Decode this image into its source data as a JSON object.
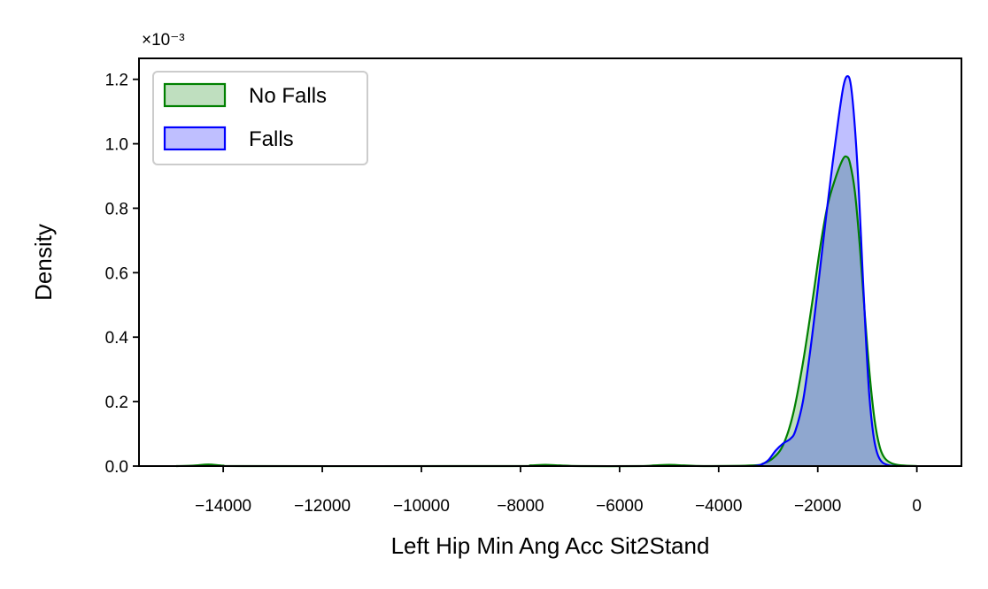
{
  "chart_data": {
    "type": "area",
    "xlabel": "Left Hip Min Ang Acc Sit2Stand",
    "ylabel": "Density",
    "y_scale_label": "×10⁻³",
    "y_scale_factor": 0.001,
    "xlim": [
      -15700,
      900
    ],
    "ylim": [
      0,
      1.265
    ],
    "x_ticks": [
      -14000,
      -12000,
      -10000,
      -8000,
      -6000,
      -4000,
      -2000,
      0
    ],
    "x_tick_labels": [
      "−14000",
      "−12000",
      "−10000",
      "−8000",
      "−6000",
      "−4000",
      "−2000",
      "0"
    ],
    "y_ticks": [
      0.0,
      0.2,
      0.4,
      0.6,
      0.8,
      1.0,
      1.2
    ],
    "y_tick_labels": [
      "0.0",
      "0.2",
      "0.4",
      "0.6",
      "0.8",
      "1.0",
      "1.2"
    ],
    "grid": false,
    "legend_position": "top-left",
    "series": [
      {
        "name": "No Falls",
        "line_color": "#008000",
        "fill_color": "#008000",
        "points": [
          [
            -14950,
            0.0
          ],
          [
            -14600,
            0.0015
          ],
          [
            -14300,
            0.005
          ],
          [
            -14000,
            0.0015
          ],
          [
            -13600,
            0.0
          ],
          [
            -8200,
            0.0
          ],
          [
            -7800,
            0.002
          ],
          [
            -7500,
            0.004
          ],
          [
            -7200,
            0.002
          ],
          [
            -6800,
            0.0
          ],
          [
            -5600,
            0.0
          ],
          [
            -5300,
            0.002
          ],
          [
            -5000,
            0.004
          ],
          [
            -4700,
            0.002
          ],
          [
            -4300,
            0.0
          ],
          [
            -3300,
            0.002
          ],
          [
            -3100,
            0.008
          ],
          [
            -2900,
            0.025
          ],
          [
            -2700,
            0.065
          ],
          [
            -2500,
            0.16
          ],
          [
            -2300,
            0.32
          ],
          [
            -2100,
            0.52
          ],
          [
            -1950,
            0.68
          ],
          [
            -1800,
            0.81
          ],
          [
            -1650,
            0.89
          ],
          [
            -1500,
            0.95
          ],
          [
            -1420,
            0.96
          ],
          [
            -1350,
            0.94
          ],
          [
            -1250,
            0.85
          ],
          [
            -1150,
            0.68
          ],
          [
            -1050,
            0.47
          ],
          [
            -950,
            0.28
          ],
          [
            -850,
            0.14
          ],
          [
            -750,
            0.06
          ],
          [
            -650,
            0.025
          ],
          [
            -500,
            0.008
          ],
          [
            -300,
            0.002
          ],
          [
            0,
            0.0
          ]
        ]
      },
      {
        "name": "Falls",
        "line_color": "#0000ff",
        "fill_color": "#0000ff",
        "points": [
          [
            -3300,
            0.0
          ],
          [
            -3150,
            0.004
          ],
          [
            -3000,
            0.018
          ],
          [
            -2850,
            0.048
          ],
          [
            -2700,
            0.07
          ],
          [
            -2550,
            0.085
          ],
          [
            -2450,
            0.11
          ],
          [
            -2300,
            0.2
          ],
          [
            -2150,
            0.36
          ],
          [
            -2000,
            0.55
          ],
          [
            -1850,
            0.75
          ],
          [
            -1700,
            0.94
          ],
          [
            -1580,
            1.08
          ],
          [
            -1480,
            1.18
          ],
          [
            -1400,
            1.21
          ],
          [
            -1330,
            1.18
          ],
          [
            -1250,
            1.05
          ],
          [
            -1170,
            0.85
          ],
          [
            -1100,
            0.62
          ],
          [
            -1030,
            0.4
          ],
          [
            -960,
            0.22
          ],
          [
            -880,
            0.1
          ],
          [
            -800,
            0.04
          ],
          [
            -700,
            0.012
          ],
          [
            -550,
            0.002
          ],
          [
            -400,
            0.0
          ]
        ]
      }
    ]
  }
}
